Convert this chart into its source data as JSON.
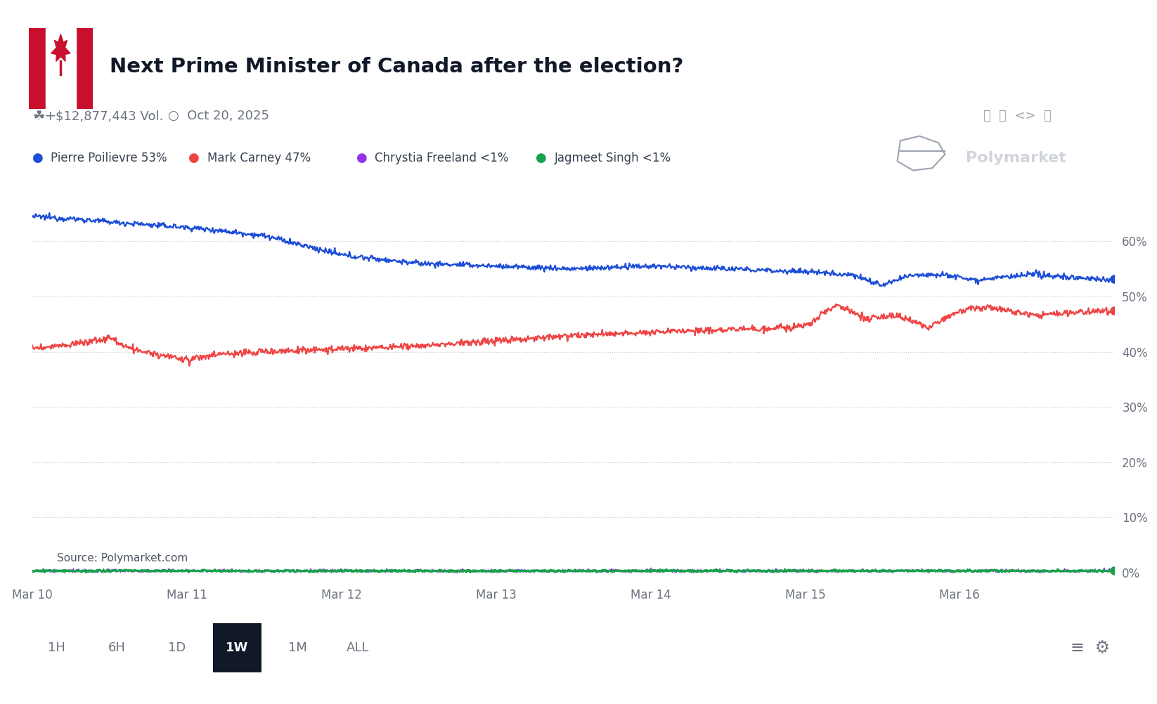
{
  "title": "Next Prime Minister of Canada after the election?",
  "subtitle_vol": "$12,877,443 Vol.",
  "subtitle_date": "Oct 20, 2025",
  "legend_items": [
    {
      "label": "Pierre Poilievre 53%",
      "color": "#1d4ed8"
    },
    {
      "label": "Mark Carney 47%",
      "color": "#ef4444"
    },
    {
      "label": "Chrystia Freeland <1%",
      "color": "#9333ea"
    },
    {
      "label": "Jagmeet Singh <1%",
      "color": "#16a34a"
    }
  ],
  "yticks": [
    0,
    10,
    20,
    30,
    40,
    50,
    60
  ],
  "xtick_labels": [
    "Mar 10",
    "Mar 11",
    "Mar 12",
    "Mar 13",
    "Mar 14",
    "Mar 15",
    "Mar 16"
  ],
  "source_text": "Source: Polymarket.com",
  "time_buttons": [
    "1H",
    "6H",
    "1D",
    "1W",
    "1M",
    "ALL"
  ],
  "active_button": "1W",
  "background_color": "#ffffff",
  "grid_color": "#c8c8c8",
  "flag_red": "#c8102e",
  "polymarket_color": "#d1d5db"
}
